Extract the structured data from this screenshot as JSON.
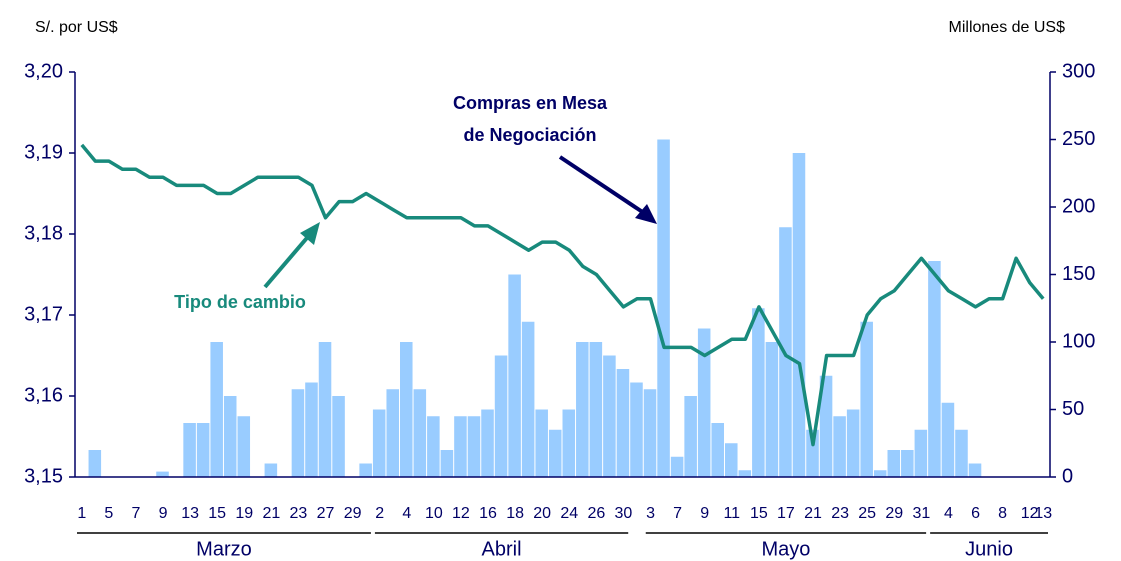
{
  "chart_data": {
    "type": "bar_line",
    "y_axis_label": "S/. por US$",
    "y2_axis_label": "Millones de US$",
    "categories": [
      "1",
      null,
      "5",
      null,
      "7",
      null,
      "9",
      null,
      "13",
      null,
      "15",
      null,
      "19",
      null,
      "21",
      null,
      "23",
      null,
      "27",
      null,
      "29",
      null,
      "2",
      null,
      "4",
      null,
      "10",
      null,
      "12",
      null,
      "16",
      null,
      "18",
      null,
      "20",
      null,
      "24",
      null,
      "26",
      null,
      "30",
      null,
      "3",
      null,
      "7",
      null,
      "9",
      null,
      "11",
      null,
      "15",
      null,
      "17",
      null,
      "21",
      null,
      "23",
      null,
      "25",
      null,
      "29",
      null,
      "31",
      null,
      "4",
      null,
      "6",
      null,
      "8",
      null,
      "12",
      "13"
    ],
    "months": [
      "Marzo",
      "Abril",
      "Mayo",
      "Junio"
    ],
    "series": [
      {
        "type": "bar",
        "axis": "y2",
        "color": "#99ccff",
        "values": [
          0,
          20,
          0,
          0,
          0,
          0,
          4,
          0,
          40,
          40,
          100,
          60,
          45,
          0,
          10,
          0,
          65,
          70,
          100,
          60,
          0,
          10,
          50,
          65,
          100,
          65,
          45,
          20,
          45,
          45,
          50,
          90,
          150,
          115,
          50,
          35,
          50,
          100,
          100,
          90,
          80,
          70,
          65,
          250,
          15,
          60,
          110,
          40,
          25,
          5,
          125,
          100,
          185,
          240,
          35,
          75,
          45,
          50,
          115,
          5,
          20,
          20,
          35,
          160,
          55,
          35,
          10,
          0,
          0,
          0,
          0,
          0
        ]
      },
      {
        "type": "line",
        "axis": "y",
        "color": "#188a7c",
        "values": [
          3.191,
          3.189,
          3.189,
          3.188,
          3.188,
          3.187,
          3.187,
          3.186,
          3.186,
          3.186,
          3.185,
          3.185,
          3.186,
          3.187,
          3.187,
          3.187,
          3.187,
          3.186,
          3.182,
          3.184,
          3.184,
          3.185,
          3.184,
          3.183,
          3.182,
          3.182,
          3.182,
          3.182,
          3.182,
          3.181,
          3.181,
          3.18,
          3.179,
          3.178,
          3.179,
          3.179,
          3.178,
          3.176,
          3.175,
          3.173,
          3.171,
          3.172,
          3.172,
          3.166,
          3.166,
          3.166,
          3.165,
          3.166,
          3.167,
          3.167,
          3.171,
          3.168,
          3.165,
          3.164,
          3.154,
          3.165,
          3.165,
          3.165,
          3.17,
          3.172,
          3.173,
          3.175,
          3.177,
          3.175,
          3.173,
          3.172,
          3.171,
          3.172,
          3.172,
          3.177,
          3.174,
          3.172
        ]
      }
    ],
    "ylim": [
      3.15,
      3.2
    ],
    "yticks": [
      {
        "value": 3.15,
        "label": "3,15"
      },
      {
        "value": 3.16,
        "label": "3,16"
      },
      {
        "value": 3.17,
        "label": "3,17"
      },
      {
        "value": 3.18,
        "label": "3,18"
      },
      {
        "value": 3.19,
        "label": "3,19"
      },
      {
        "value": 3.2,
        "label": "3,20"
      }
    ],
    "y2lim": [
      0,
      300
    ],
    "y2ticks": [
      0,
      50,
      100,
      150,
      200,
      250,
      300
    ],
    "annotations": [
      {
        "lines": [
          "Compras en Mesa",
          "de Negociación"
        ],
        "color": "#000066"
      },
      {
        "lines": [
          "Tipo de cambio"
        ],
        "color": "#188a7c"
      }
    ]
  }
}
